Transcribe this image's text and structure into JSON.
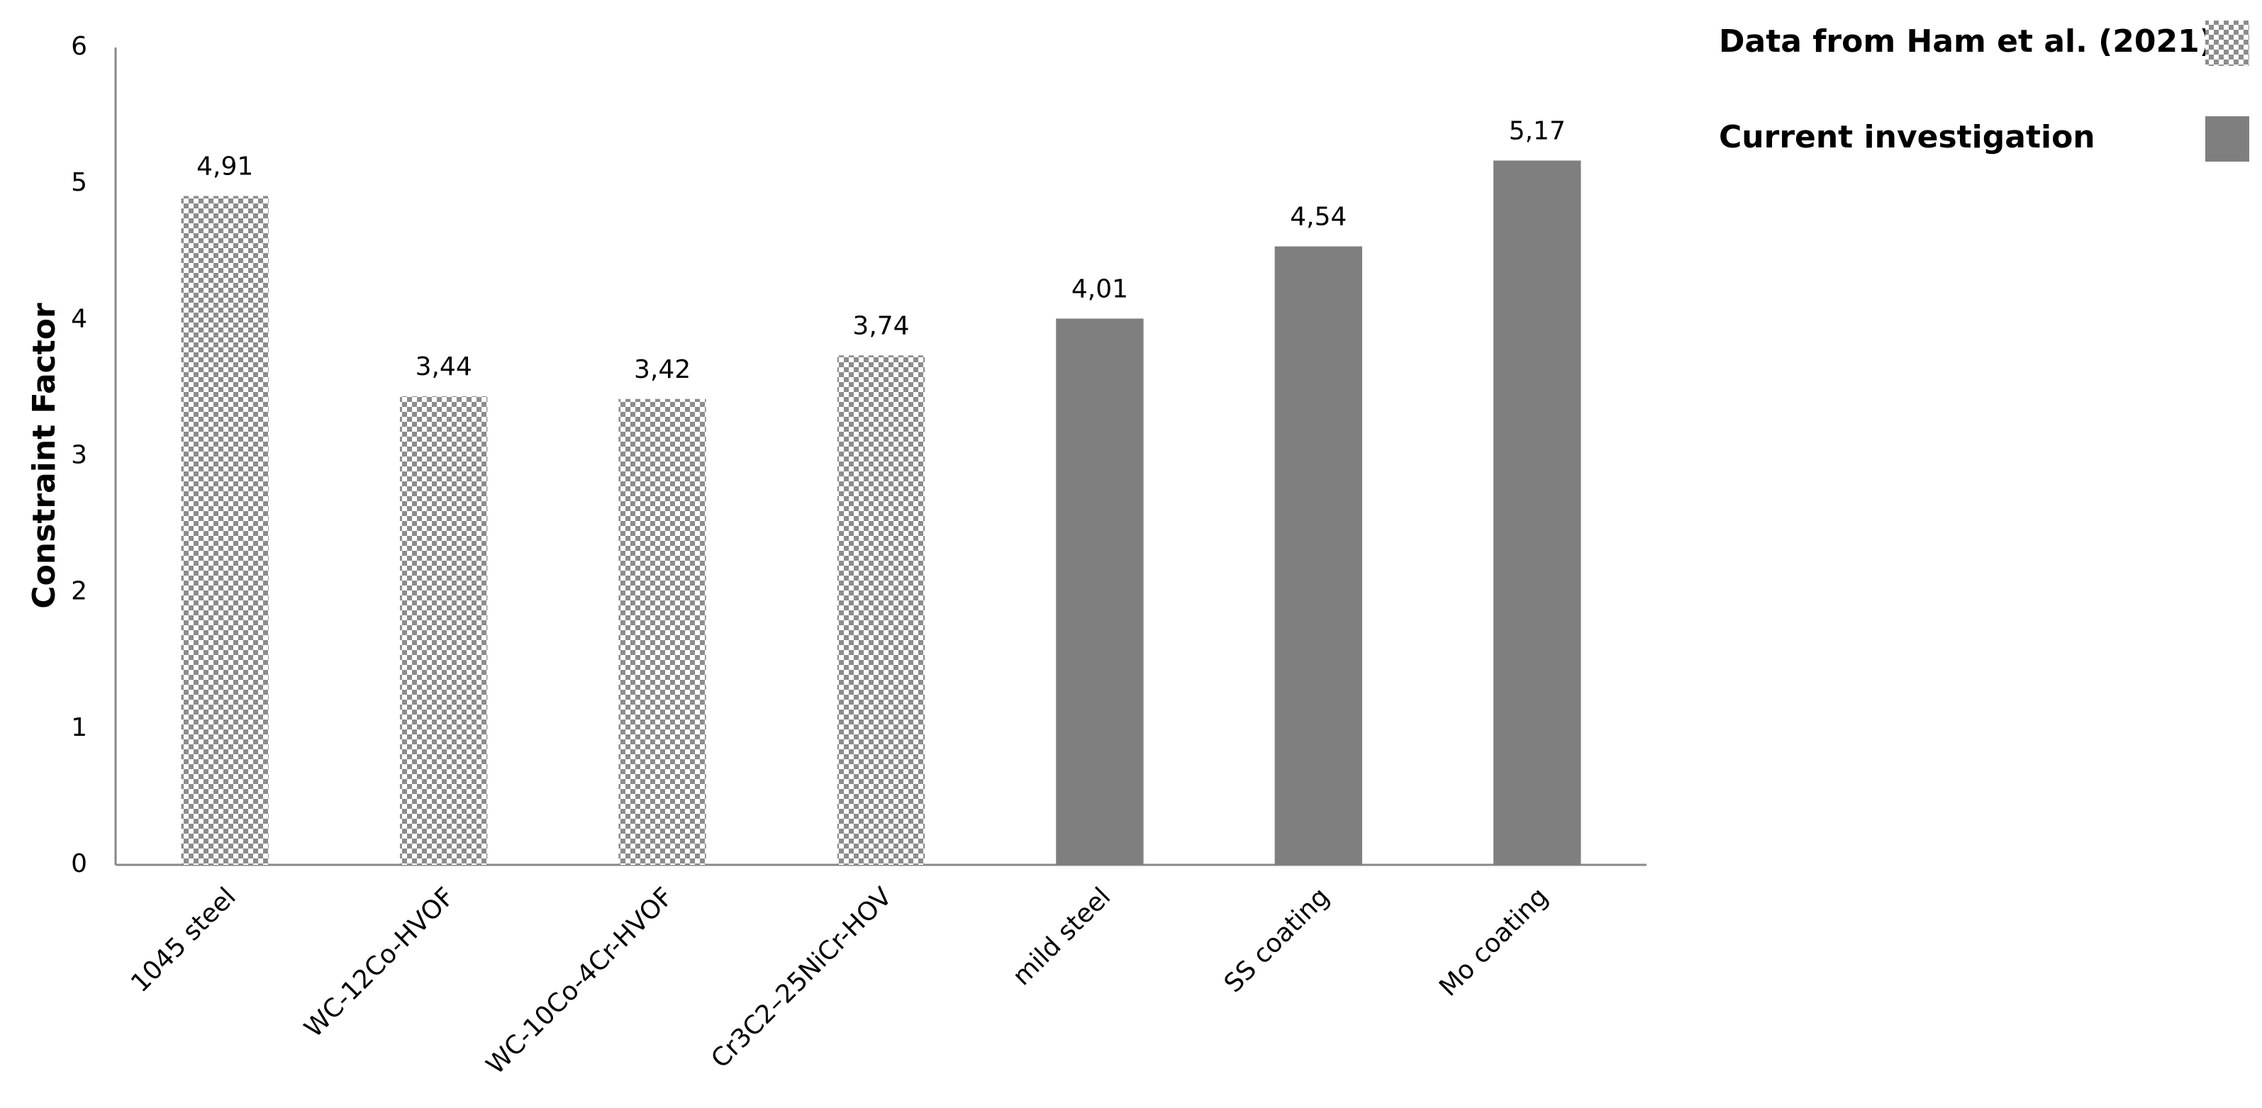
{
  "chart_data": {
    "type": "bar",
    "y_label": "Constraint Factor",
    "categories": [
      "1045 steel",
      "WC-12Co-HVOF",
      "WC-10Co-4Cr-HVOF",
      "Cr3C2–25NiCr-HOV",
      "mild steel",
      "SS coating",
      "Mo coating"
    ],
    "series": [
      {
        "name": "Data from Ham et al. (2021)",
        "color": "#8c8c8c",
        "pattern": "checkerboard",
        "values": [
          4.91,
          3.44,
          3.42,
          3.74,
          null,
          null,
          null
        ],
        "value_labels": [
          "4,91",
          "3,44",
          "3,42",
          "3,74",
          null,
          null,
          null
        ]
      },
      {
        "name": "Current investigation",
        "color": "#7f7f7f",
        "pattern": "solid",
        "values": [
          null,
          null,
          null,
          null,
          4.01,
          4.54,
          5.17
        ],
        "value_labels": [
          null,
          null,
          null,
          null,
          "4,01",
          "4,54",
          "5,17"
        ]
      }
    ],
    "ylim": [
      0,
      6
    ],
    "yticks": [
      0,
      1,
      2,
      3,
      4,
      5,
      6
    ],
    "grid": false,
    "legend": "top-right"
  }
}
